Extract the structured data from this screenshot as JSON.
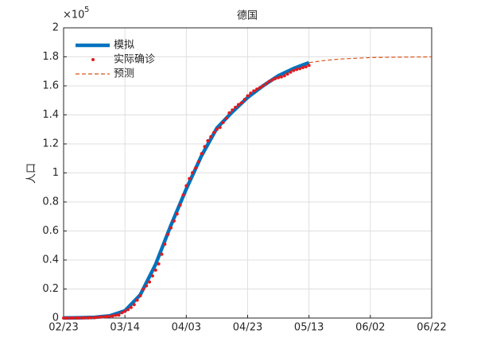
{
  "chart_data": {
    "type": "line",
    "title": "德国",
    "y_label": "人口",
    "y_exponent_base": "×10",
    "y_exponent_power": "5",
    "xlim": [
      0,
      120
    ],
    "xticks": [
      {
        "value": 0,
        "label": "02/23"
      },
      {
        "value": 20,
        "label": "03/14"
      },
      {
        "value": 40,
        "label": "04/03"
      },
      {
        "value": 60,
        "label": "04/23"
      },
      {
        "value": 80,
        "label": "05/13"
      },
      {
        "value": 100,
        "label": "06/02"
      },
      {
        "value": 120,
        "label": "06/22"
      }
    ],
    "ylim": [
      0,
      2
    ],
    "yticks": [
      0,
      0.2,
      0.4,
      0.6,
      0.8,
      1,
      1.2,
      1.4,
      1.6,
      1.8,
      2
    ],
    "grid": true,
    "legend": "upper left",
    "series": [
      {
        "name": "模拟",
        "color": "#0072bd",
        "style": "solid",
        "x": [
          0,
          5,
          10,
          15,
          20,
          25,
          30,
          35,
          40,
          45,
          50,
          55,
          60,
          65,
          70,
          75,
          80
        ],
        "values": [
          0.001,
          0.002,
          0.005,
          0.015,
          0.05,
          0.16,
          0.37,
          0.64,
          0.89,
          1.12,
          1.31,
          1.42,
          1.52,
          1.6,
          1.67,
          1.72,
          1.76
        ]
      },
      {
        "name": "实际确诊",
        "color": "#e31a1c",
        "style": "dots",
        "x": [
          0,
          1,
          2,
          3,
          4,
          5,
          6,
          7,
          8,
          9,
          10,
          11,
          12,
          13,
          14,
          15,
          16,
          17,
          18,
          19,
          20,
          21,
          22,
          23,
          24,
          25,
          26,
          27,
          28,
          29,
          30,
          31,
          32,
          33,
          34,
          35,
          36,
          37,
          38,
          39,
          40,
          41,
          42,
          43,
          44,
          45,
          46,
          47,
          48,
          49,
          50,
          51,
          52,
          53,
          54,
          55,
          56,
          57,
          58,
          59,
          60,
          61,
          62,
          63,
          64,
          65,
          66,
          67,
          68,
          69,
          70,
          71,
          72,
          73,
          74,
          75,
          76,
          77,
          78,
          79,
          80
        ],
        "values": [
          0.0002,
          0.0002,
          0.0002,
          0.0003,
          0.0005,
          0.0005,
          0.0008,
          0.0013,
          0.0016,
          0.002,
          0.0026,
          0.0048,
          0.0067,
          0.008,
          0.0104,
          0.0118,
          0.0146,
          0.0191,
          0.0208,
          0.0368,
          0.0459,
          0.058,
          0.0727,
          0.0926,
          0.1233,
          0.1532,
          0.1985,
          0.2221,
          0.2487,
          0.2906,
          0.3299,
          0.3732,
          0.4394,
          0.5087,
          0.577,
          0.621,
          0.6689,
          0.7181,
          0.7787,
          0.8479,
          0.9116,
          0.9609,
          1.0012,
          1.0337,
          1.0766,
          1.133,
          1.1818,
          1.2217,
          1.2491,
          1.2785,
          1.3007,
          1.3136,
          1.3475,
          1.377,
          1.414,
          1.4334,
          1.4518,
          1.4707,
          1.4829,
          1.5065,
          1.5313,
          1.55,
          1.5651,
          1.5777,
          1.5876,
          1.5991,
          1.6154,
          1.6301,
          1.6408,
          1.6497,
          1.6566,
          1.6615,
          1.6701,
          1.6816,
          1.6943,
          1.7059,
          1.7132,
          1.7188,
          1.7258,
          1.7317,
          1.741
        ]
      },
      {
        "name": "预测",
        "color": "#d95319",
        "style": "dashed",
        "x": [
          80,
          85,
          90,
          95,
          100,
          105,
          110,
          115,
          120
        ],
        "values": [
          1.76,
          1.775,
          1.785,
          1.79,
          1.795,
          1.797,
          1.798,
          1.799,
          1.8
        ]
      }
    ]
  }
}
